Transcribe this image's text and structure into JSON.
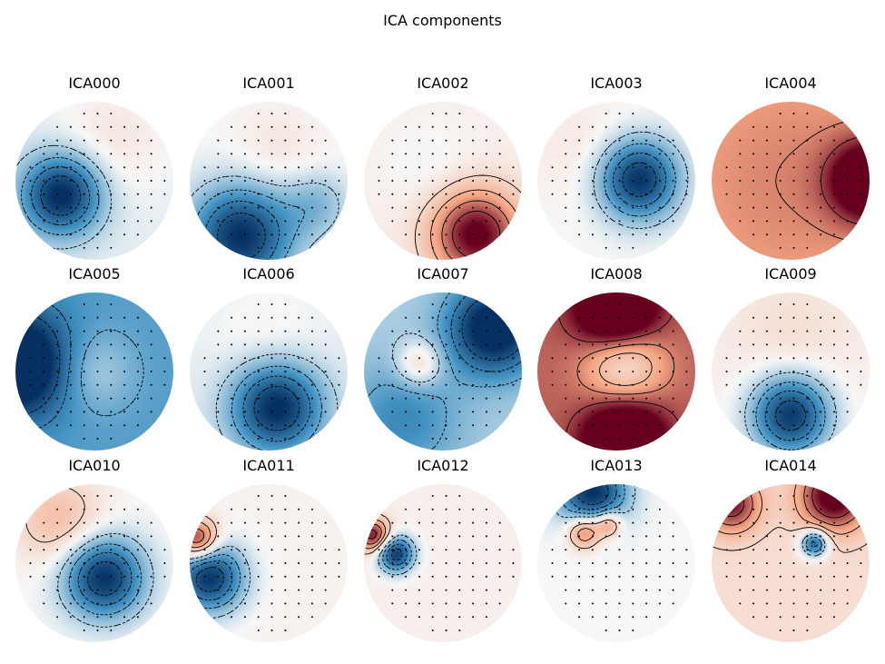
{
  "figure": {
    "title": "ICA components"
  },
  "colormap": {
    "name": "RdBu_r",
    "negative_color": "#053061",
    "mid_negative_color": "#4393c3",
    "neutral_color": "#f7f7f7",
    "mid_positive_color": "#f4a582",
    "positive_color": "#67001f"
  },
  "chart_data": {
    "type": "heatmap",
    "subtype": "topomap-grid",
    "title": "ICA components",
    "rows": 3,
    "cols": 5,
    "panels": [
      {
        "name": "ICA000",
        "blobs": [
          {
            "x": -0.42,
            "y": -0.18,
            "v": -1.0,
            "s": 0.35
          },
          {
            "x": 0.25,
            "y": 0.55,
            "v": 0.15,
            "s": 0.5
          }
        ],
        "base": -0.05
      },
      {
        "name": "ICA001",
        "blobs": [
          {
            "x": -0.35,
            "y": -0.7,
            "v": -1.0,
            "s": 0.45
          },
          {
            "x": 0.1,
            "y": 0.35,
            "v": 0.12,
            "s": 0.4
          },
          {
            "x": 0.6,
            "y": -0.3,
            "v": -0.3,
            "s": 0.3
          }
        ],
        "base": 0.0
      },
      {
        "name": "ICA002",
        "blobs": [
          {
            "x": 0.42,
            "y": -0.68,
            "v": 1.0,
            "s": 0.4
          },
          {
            "x": -0.15,
            "y": 0.2,
            "v": -0.08,
            "s": 0.4
          }
        ],
        "base": 0.05
      },
      {
        "name": "ICA003",
        "blobs": [
          {
            "x": 0.28,
            "y": 0.02,
            "v": -1.0,
            "s": 0.35
          },
          {
            "x": -0.4,
            "y": 0.4,
            "v": 0.1,
            "s": 0.5
          }
        ],
        "base": 0.0
      },
      {
        "name": "ICA004",
        "blobs": [
          {
            "x": 1.0,
            "y": 0.0,
            "v": 1.0,
            "s": 0.35
          },
          {
            "x": 0.0,
            "y": 0.0,
            "v": 0.15,
            "s": 0.9
          }
        ],
        "base": 0.45
      },
      {
        "name": "ICA005",
        "blobs": [
          {
            "x": -1.0,
            "y": 0.1,
            "v": -1.0,
            "s": 0.45
          },
          {
            "x": 0.0,
            "y": 0.0,
            "v": 0.25,
            "s": 0.35
          }
        ],
        "base": -0.45
      },
      {
        "name": "ICA006",
        "blobs": [
          {
            "x": 0.1,
            "y": -0.45,
            "v": -1.0,
            "s": 0.4
          },
          {
            "x": 0.0,
            "y": 0.35,
            "v": 0.1,
            "s": 0.5
          }
        ],
        "base": -0.05
      },
      {
        "name": "ICA007",
        "blobs": [
          {
            "x": 0.65,
            "y": 0.55,
            "v": -1.0,
            "s": 0.4
          },
          {
            "x": -0.3,
            "y": 0.1,
            "v": 0.45,
            "s": 0.2
          },
          {
            "x": -0.5,
            "y": -0.6,
            "v": -0.35,
            "s": 0.5
          }
        ],
        "base": -0.2
      },
      {
        "name": "ICA008",
        "blobs": [
          {
            "x": 0.0,
            "y": 0.8,
            "v": 1.0,
            "s": 0.35
          },
          {
            "x": 0.1,
            "y": -0.9,
            "v": 1.0,
            "s": 0.35
          },
          {
            "x": 0.1,
            "y": 0.1,
            "v": -0.6,
            "s": 0.35
          }
        ],
        "base": 0.7
      },
      {
        "name": "ICA009",
        "blobs": [
          {
            "x": 0.0,
            "y": -0.55,
            "v": -1.0,
            "s": 0.35
          },
          {
            "x": 0.0,
            "y": 0.5,
            "v": 0.1,
            "s": 0.5
          }
        ],
        "base": 0.05
      },
      {
        "name": "ICA010",
        "blobs": [
          {
            "x": 0.12,
            "y": -0.18,
            "v": -1.0,
            "s": 0.35
          },
          {
            "x": -0.45,
            "y": 0.55,
            "v": 0.35,
            "s": 0.4
          }
        ],
        "base": 0.0
      },
      {
        "name": "ICA011",
        "blobs": [
          {
            "x": -0.75,
            "y": -0.18,
            "v": -1.0,
            "s": 0.3
          },
          {
            "x": -0.9,
            "y": 0.3,
            "v": 0.9,
            "s": 0.18
          }
        ],
        "base": 0.03
      },
      {
        "name": "ICA012",
        "blobs": [
          {
            "x": -0.6,
            "y": 0.12,
            "v": -1.0,
            "s": 0.16
          },
          {
            "x": -0.88,
            "y": 0.35,
            "v": 0.9,
            "s": 0.15
          }
        ],
        "base": 0.05
      },
      {
        "name": "ICA013",
        "blobs": [
          {
            "x": -0.3,
            "y": 0.9,
            "v": -1.0,
            "s": 0.3
          },
          {
            "x": -0.4,
            "y": 0.4,
            "v": 0.7,
            "s": 0.15
          },
          {
            "x": -0.1,
            "y": 0.5,
            "v": 0.6,
            "s": 0.12
          }
        ],
        "base": 0.0
      },
      {
        "name": "ICA014",
        "blobs": [
          {
            "x": 0.3,
            "y": 0.25,
            "v": -0.9,
            "s": 0.12
          },
          {
            "x": 0.55,
            "y": 0.85,
            "v": 1.0,
            "s": 0.3
          },
          {
            "x": -0.75,
            "y": 0.75,
            "v": 0.8,
            "s": 0.25
          }
        ],
        "base": 0.15
      }
    ]
  }
}
